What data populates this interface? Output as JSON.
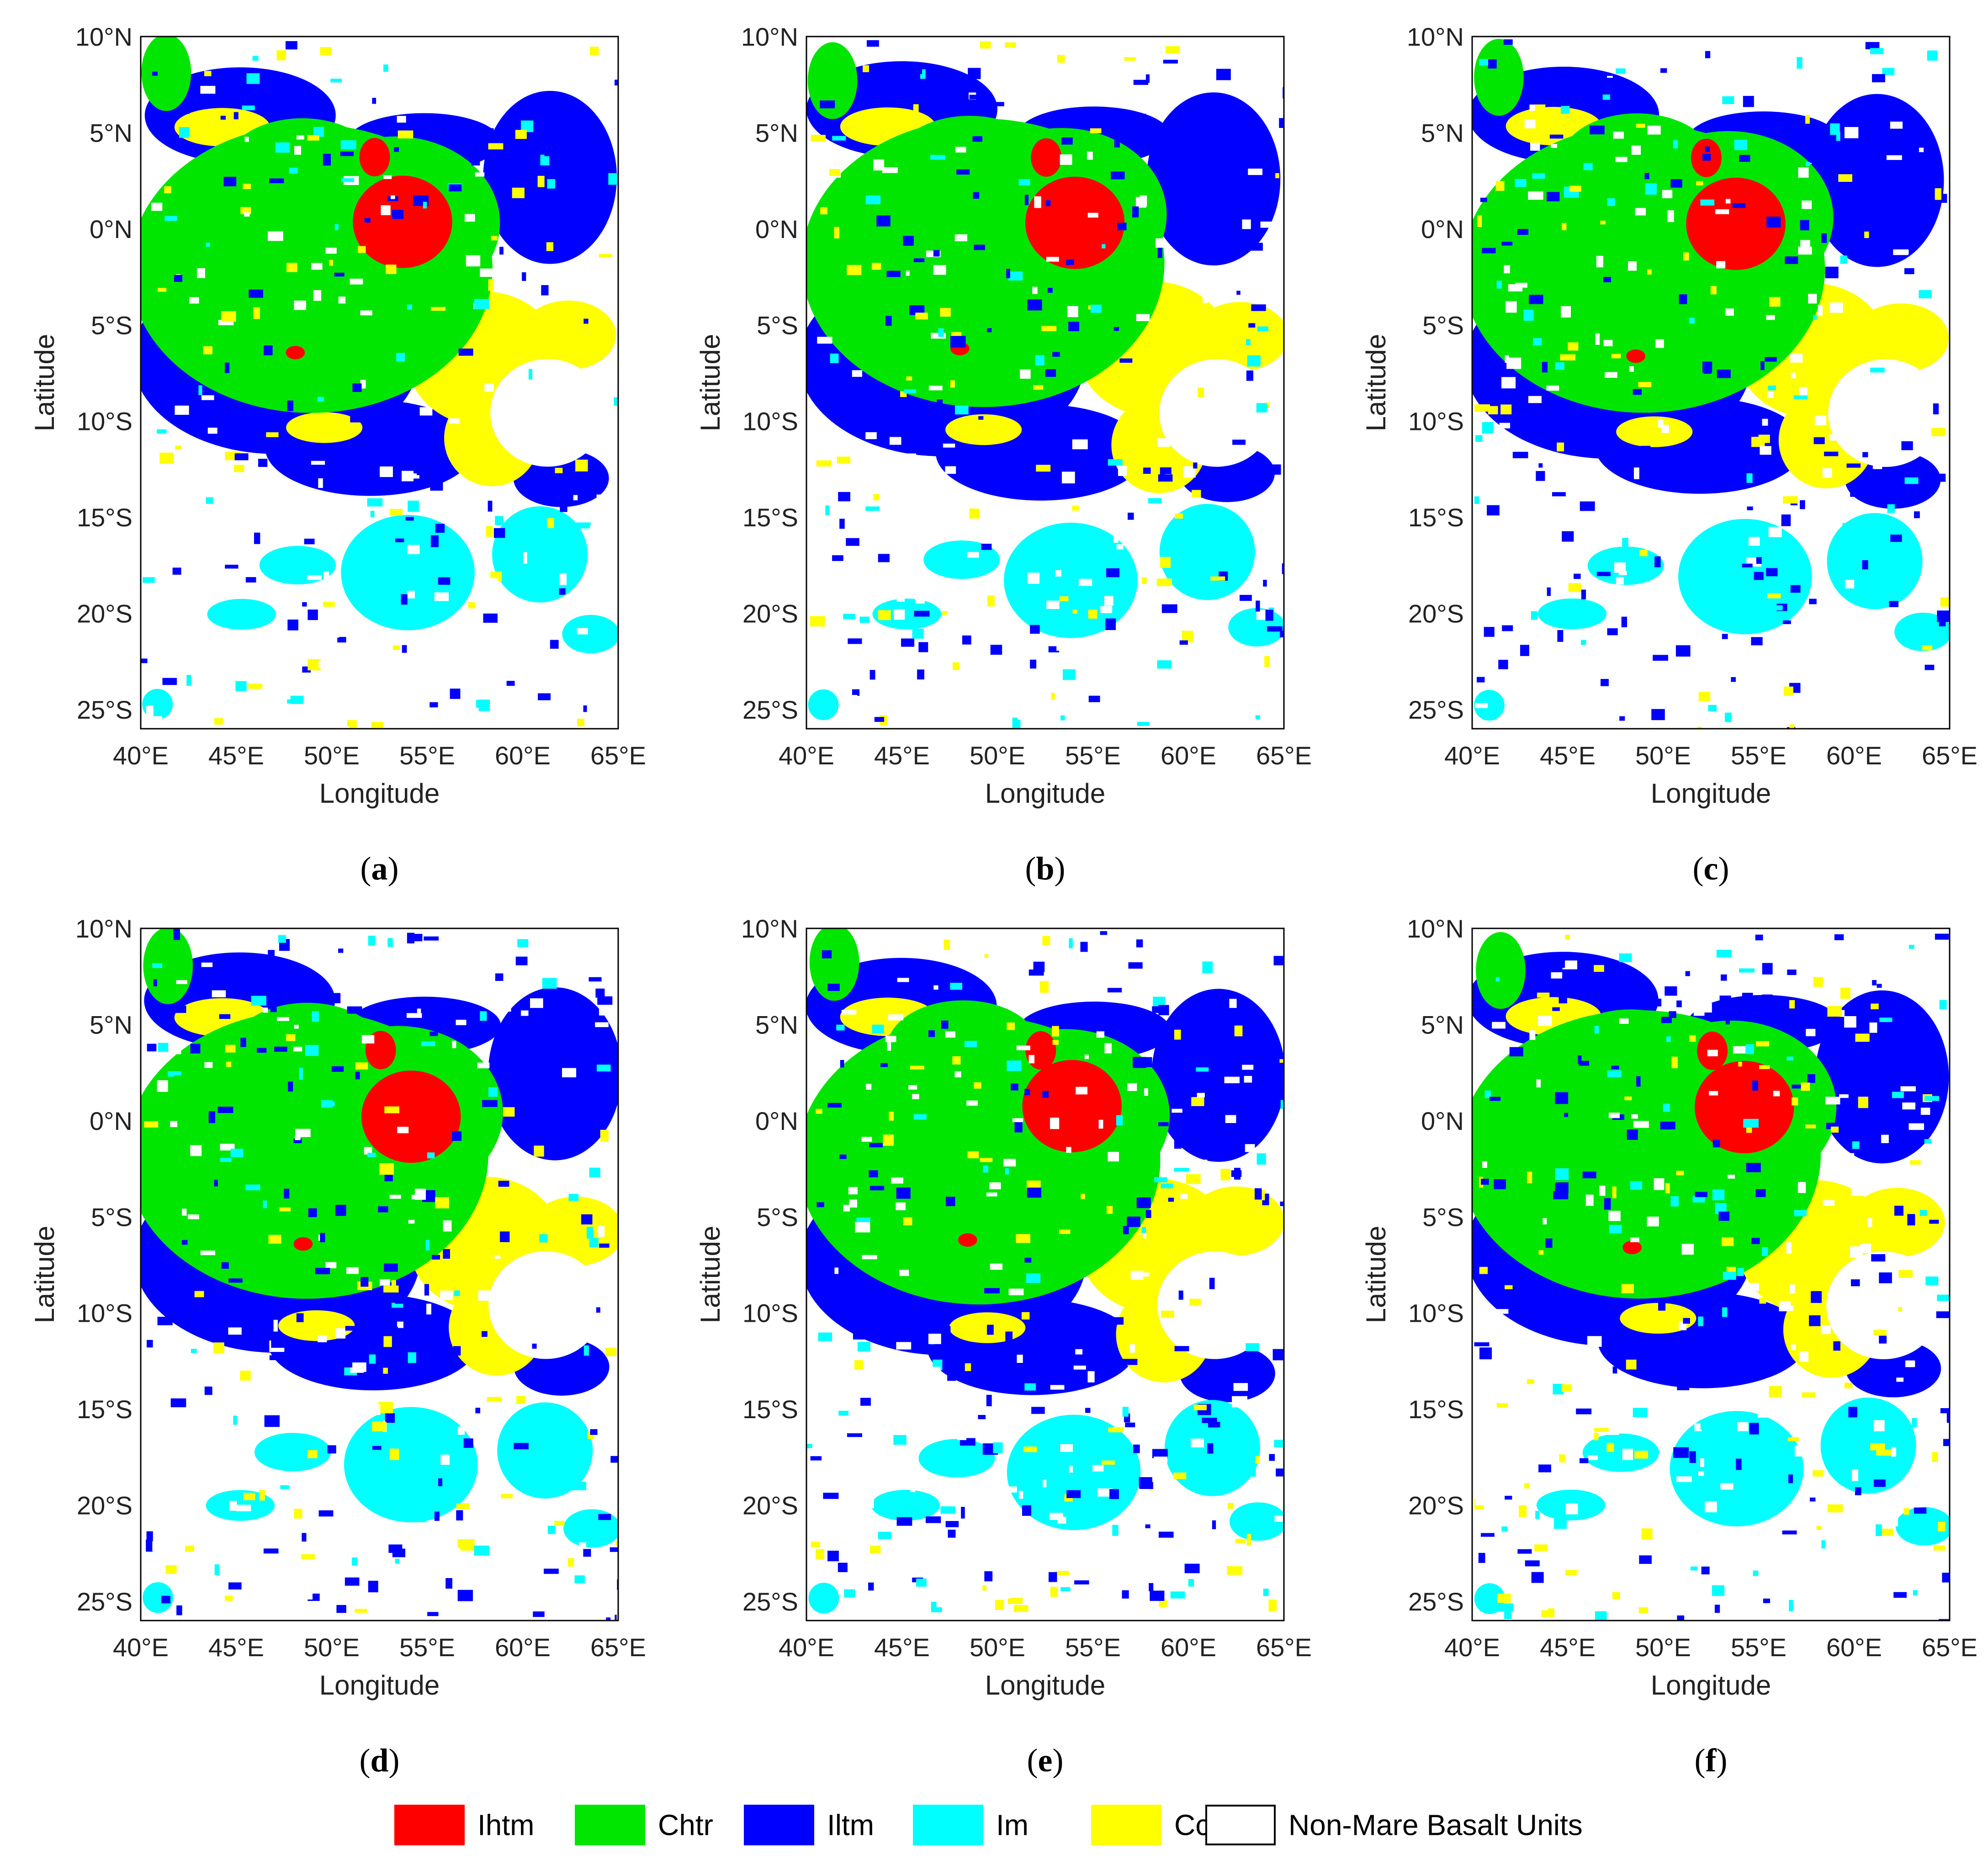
{
  "chart_data": {
    "type": "map",
    "axes": {
      "xlabel": "Longitude",
      "ylabel": "Latitude",
      "xlim": [
        40,
        65
      ],
      "ylim": [
        -26,
        10
      ],
      "x_ticks": [
        {
          "value": 40,
          "label": "40°E"
        },
        {
          "value": 45,
          "label": "45°E"
        },
        {
          "value": 50,
          "label": "50°E"
        },
        {
          "value": 55,
          "label": "55°E"
        },
        {
          "value": 60,
          "label": "60°E"
        },
        {
          "value": 65,
          "label": "65°E"
        }
      ],
      "y_ticks": [
        {
          "value": 10,
          "label": "10°N"
        },
        {
          "value": 5,
          "label": "5°N"
        },
        {
          "value": 0,
          "label": "0°N"
        },
        {
          "value": -5,
          "label": "5°S"
        },
        {
          "value": -10,
          "label": "10°S"
        },
        {
          "value": -15,
          "label": "15°S"
        },
        {
          "value": -20,
          "label": "20°S"
        },
        {
          "value": -25,
          "label": "25°S"
        }
      ]
    },
    "panels": [
      {
        "letter": "a",
        "variant": 0
      },
      {
        "letter": "b",
        "variant": 1
      },
      {
        "letter": "c",
        "variant": 2
      },
      {
        "letter": "d",
        "variant": 3
      },
      {
        "letter": "e",
        "variant": 4
      },
      {
        "letter": "f",
        "variant": 5
      }
    ],
    "legend": [
      {
        "key": "Ihtm",
        "label": "Ihtm",
        "color": "#ff0000"
      },
      {
        "key": "Chtr",
        "label": "Chtr",
        "color": "#00e600"
      },
      {
        "key": "Iltm",
        "label": "Iltm",
        "color": "#0000ff"
      },
      {
        "key": "Im",
        "label": "Im",
        "color": "#00ffff"
      },
      {
        "key": "Cc",
        "label": "Cc",
        "color": "#ffff00"
      },
      {
        "key": "Non",
        "label": "Non-Mare Basalt Units",
        "color": "#ffffff"
      }
    ],
    "units": {
      "Chtr": [
        {
          "lon": 49.0,
          "lat": -2.0,
          "rx": 9.5,
          "ry": 7.5
        },
        {
          "lon": 53.5,
          "lat": 0.5,
          "rx": 5.5,
          "ry": 4.5
        },
        {
          "lon": 48.5,
          "lat": 3.5,
          "rx": 4.0,
          "ry": 2.5
        },
        {
          "lon": 41.2,
          "lat": 8.0,
          "rx": 1.3,
          "ry": 2.0
        }
      ],
      "Ihtm": [
        {
          "lon": 54.0,
          "lat": 0.5,
          "rx": 2.6,
          "ry": 2.4
        },
        {
          "lon": 52.5,
          "lat": 3.8,
          "rx": 0.8,
          "ry": 1.0
        },
        {
          "lon": 48.3,
          "lat": -6.5,
          "rx": 0.5,
          "ry": 0.35
        }
      ],
      "Iltm": [
        {
          "lon": 47.0,
          "lat": -7.0,
          "rx": 7.5,
          "ry": 5.0
        },
        {
          "lon": 52.0,
          "lat": -11.5,
          "rx": 5.5,
          "ry": 2.5
        },
        {
          "lon": 45.0,
          "lat": 6.0,
          "rx": 5.0,
          "ry": 2.5
        },
        {
          "lon": 61.5,
          "lat": 2.5,
          "rx": 3.5,
          "ry": 4.5
        },
        {
          "lon": 55.0,
          "lat": 4.8,
          "rx": 4.0,
          "ry": 1.5
        },
        {
          "lon": 62.0,
          "lat": -13.0,
          "rx": 2.5,
          "ry": 1.5
        }
      ],
      "Cc": [
        {
          "lon": 58.0,
          "lat": -6.5,
          "rx": 4.0,
          "ry": 3.5
        },
        {
          "lon": 58.5,
          "lat": -11.0,
          "rx": 2.5,
          "ry": 2.5
        },
        {
          "lon": 62.5,
          "lat": -5.5,
          "rx": 2.5,
          "ry": 1.8
        },
        {
          "lon": 44.0,
          "lat": 5.5,
          "rx": 2.5,
          "ry": 1.0
        },
        {
          "lon": 49.5,
          "lat": -10.5,
          "rx": 2.0,
          "ry": 0.8
        }
      ],
      "Im": [
        {
          "lon": 54.0,
          "lat": -18.0,
          "rx": 3.5,
          "ry": 3.0
        },
        {
          "lon": 61.0,
          "lat": -17.0,
          "rx": 2.5,
          "ry": 2.5
        },
        {
          "lon": 48.0,
          "lat": -17.5,
          "rx": 2.0,
          "ry": 1.0
        },
        {
          "lon": 45.0,
          "lat": -20.0,
          "rx": 1.8,
          "ry": 0.8
        },
        {
          "lon": 63.5,
          "lat": -21.0,
          "rx": 1.5,
          "ry": 1.0
        },
        {
          "lon": 40.8,
          "lat": -25.0,
          "rx": 0.8,
          "ry": 0.8
        }
      ],
      "Non": [
        {
          "lon": 61.5,
          "lat": -9.5,
          "rx": 3.0,
          "ry": 2.8
        }
      ]
    }
  }
}
